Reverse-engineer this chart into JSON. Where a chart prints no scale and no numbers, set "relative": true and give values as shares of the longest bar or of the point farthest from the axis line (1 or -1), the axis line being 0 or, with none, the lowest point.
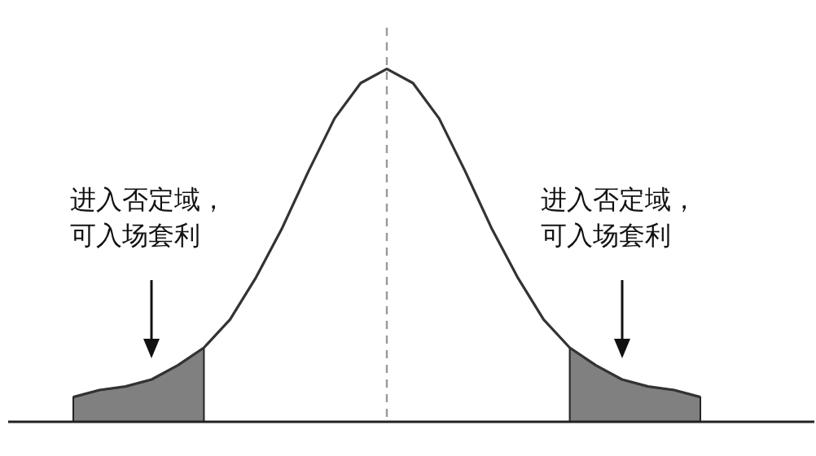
{
  "chart_data": {
    "type": "line",
    "relative": true,
    "marker": "none",
    "categories": [
      null,
      null,
      null,
      null,
      null,
      null,
      null,
      null,
      null,
      null,
      null,
      null,
      null,
      null,
      null,
      null,
      null,
      null,
      null,
      null,
      null,
      null,
      null,
      null,
      null
    ],
    "series": [
      {
        "color": "#333333",
        "values": [
          0.07,
          0.09,
          0.1,
          0.12,
          0.16,
          0.21,
          0.29,
          0.41,
          0.55,
          0.71,
          0.86,
          0.96,
          1,
          0.96,
          0.86,
          0.71,
          0.55,
          0.41,
          0.29,
          0.21,
          0.16,
          0.12,
          0.1,
          0.09,
          0.07
        ]
      }
    ],
    "annotations": [
      "进入否定域，可入场套利",
      "进入否定域，可入场套利"
    ]
  }
}
